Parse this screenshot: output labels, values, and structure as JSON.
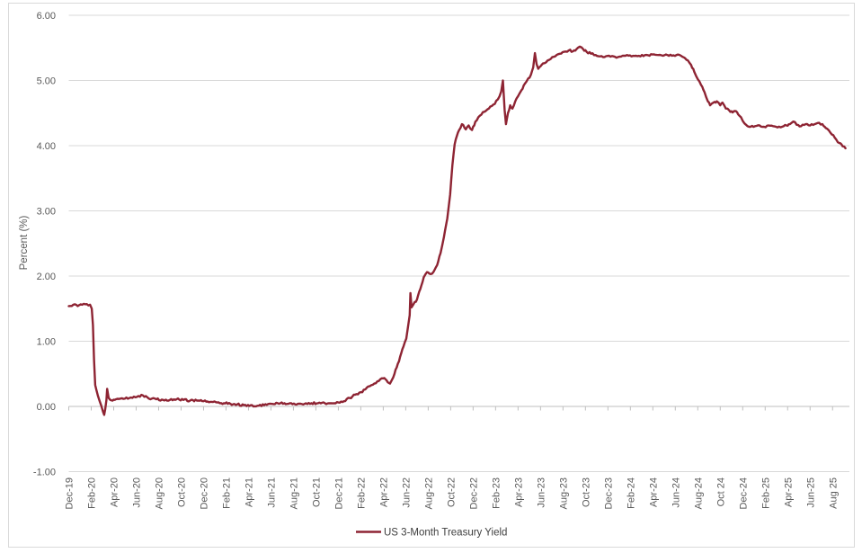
{
  "chart": {
    "y_axis_title": "Percent (%)",
    "legend_label": "US 3-Month Treasury Yield",
    "colors": {
      "line": "#8E2433",
      "gridline": "#D9D9D9",
      "axis_line": "#BFBFBF",
      "tick_label": "#595959",
      "legend_text": "#404040",
      "border": "#D9D9D9",
      "background": "#FFFFFF"
    }
  },
  "chart_data": {
    "type": "line",
    "title": "",
    "xlabel": "",
    "ylabel": "Percent (%)",
    "grid": "horizontal",
    "legend_position": "bottom-center",
    "ylim": [
      -1,
      6
    ],
    "y_ticks": [
      {
        "value": 6,
        "label": "6.00"
      },
      {
        "value": 5,
        "label": "5.00"
      },
      {
        "value": 4,
        "label": "4.00"
      },
      {
        "value": 3,
        "label": "3.00"
      },
      {
        "value": 2,
        "label": "2.00"
      },
      {
        "value": 1,
        "label": "1.00"
      },
      {
        "value": 0,
        "label": "0.00"
      },
      {
        "value": -1,
        "label": "-1.00"
      }
    ],
    "x_unit": "months_since_Dec_2019",
    "xlim": [
      0,
      69.5
    ],
    "x_tick_interval_months": 2,
    "x_tick_labels": [
      "Dec-19",
      "Feb-20",
      "Apr-20",
      "Jun-20",
      "Aug-20",
      "Oct-20",
      "Dec-20",
      "Feb-21",
      "Apr-21",
      "Jun-21",
      "Aug-21",
      "Oct-21",
      "Dec-21",
      "Feb-22",
      "Apr-22",
      "Jun-22",
      "Aug-22",
      "Oct-22",
      "Dec-22",
      "Feb-23",
      "Apr-23",
      "Jun-23",
      "Aug-23",
      "Oct-23",
      "Dec-23",
      "Feb-24",
      "Apr-24",
      "Jun-24",
      "Aug-24",
      "Oct 24",
      "Dec-24",
      "Feb-25",
      "Apr-25",
      "Jun-25",
      "Aug 25"
    ],
    "line_jitter": 0.016,
    "series": [
      {
        "name": "US 3-Month Treasury Yield",
        "color": "#8E2433",
        "points": [
          [
            0,
            1.54
          ],
          [
            0.4,
            1.56
          ],
          [
            0.8,
            1.54
          ],
          [
            1.2,
            1.56
          ],
          [
            1.6,
            1.57
          ],
          [
            1.9,
            1.56
          ],
          [
            2.05,
            1.5
          ],
          [
            2.15,
            1.25
          ],
          [
            2.25,
            0.72
          ],
          [
            2.35,
            0.33
          ],
          [
            2.45,
            0.26
          ],
          [
            2.6,
            0.16
          ],
          [
            2.75,
            0.08
          ],
          [
            2.9,
            0.01
          ],
          [
            3.05,
            -0.08
          ],
          [
            3.15,
            -0.13
          ],
          [
            3.25,
            -0.04
          ],
          [
            3.35,
            0.1
          ],
          [
            3.42,
            0.27
          ],
          [
            3.55,
            0.13
          ],
          [
            3.7,
            0.1
          ],
          [
            3.9,
            0.09
          ],
          [
            4.2,
            0.11
          ],
          [
            4.6,
            0.12
          ],
          [
            5.0,
            0.12
          ],
          [
            5.4,
            0.13
          ],
          [
            5.8,
            0.15
          ],
          [
            6.2,
            0.16
          ],
          [
            6.6,
            0.17
          ],
          [
            7.0,
            0.14
          ],
          [
            7.4,
            0.12
          ],
          [
            7.8,
            0.11
          ],
          [
            8.4,
            0.1
          ],
          [
            9.0,
            0.1
          ],
          [
            9.6,
            0.11
          ],
          [
            10.2,
            0.1
          ],
          [
            10.8,
            0.09
          ],
          [
            11.4,
            0.09
          ],
          [
            12.0,
            0.08
          ],
          [
            12.6,
            0.07
          ],
          [
            13.2,
            0.06
          ],
          [
            13.8,
            0.05
          ],
          [
            14.4,
            0.04
          ],
          [
            15.0,
            0.03
          ],
          [
            15.6,
            0.02
          ],
          [
            16.2,
            0.02
          ],
          [
            16.8,
            0.01
          ],
          [
            17.4,
            0.02
          ],
          [
            18.0,
            0.04
          ],
          [
            18.6,
            0.05
          ],
          [
            19.2,
            0.05
          ],
          [
            19.8,
            0.05
          ],
          [
            20.4,
            0.04
          ],
          [
            21.0,
            0.04
          ],
          [
            21.6,
            0.05
          ],
          [
            22.2,
            0.05
          ],
          [
            22.8,
            0.05
          ],
          [
            23.4,
            0.05
          ],
          [
            24.0,
            0.06
          ],
          [
            24.5,
            0.08
          ],
          [
            25.0,
            0.13
          ],
          [
            25.5,
            0.18
          ],
          [
            26.0,
            0.22
          ],
          [
            26.4,
            0.26
          ],
          [
            26.8,
            0.31
          ],
          [
            27.2,
            0.35
          ],
          [
            27.6,
            0.39
          ],
          [
            28.0,
            0.43
          ],
          [
            28.3,
            0.4
          ],
          [
            28.6,
            0.35
          ],
          [
            28.9,
            0.45
          ],
          [
            29.2,
            0.6
          ],
          [
            29.5,
            0.76
          ],
          [
            29.8,
            0.92
          ],
          [
            30.05,
            1.04
          ],
          [
            30.2,
            1.22
          ],
          [
            30.35,
            1.4
          ],
          [
            30.42,
            1.74
          ],
          [
            30.52,
            1.52
          ],
          [
            30.7,
            1.57
          ],
          [
            31.0,
            1.64
          ],
          [
            31.3,
            1.8
          ],
          [
            31.6,
            1.98
          ],
          [
            31.9,
            2.06
          ],
          [
            32.2,
            2.03
          ],
          [
            32.5,
            2.07
          ],
          [
            32.8,
            2.17
          ],
          [
            33.1,
            2.35
          ],
          [
            33.4,
            2.6
          ],
          [
            33.7,
            2.88
          ],
          [
            33.95,
            3.25
          ],
          [
            34.15,
            3.7
          ],
          [
            34.35,
            4.02
          ],
          [
            34.55,
            4.15
          ],
          [
            34.75,
            4.24
          ],
          [
            35.0,
            4.33
          ],
          [
            35.35,
            4.25
          ],
          [
            35.6,
            4.31
          ],
          [
            35.9,
            4.24
          ],
          [
            36.2,
            4.37
          ],
          [
            36.6,
            4.46
          ],
          [
            37.0,
            4.52
          ],
          [
            37.4,
            4.57
          ],
          [
            37.8,
            4.63
          ],
          [
            38.2,
            4.71
          ],
          [
            38.5,
            4.83
          ],
          [
            38.65,
            5.0
          ],
          [
            38.8,
            4.55
          ],
          [
            38.92,
            4.33
          ],
          [
            39.1,
            4.5
          ],
          [
            39.3,
            4.62
          ],
          [
            39.5,
            4.57
          ],
          [
            39.75,
            4.68
          ],
          [
            40.0,
            4.76
          ],
          [
            40.3,
            4.85
          ],
          [
            40.6,
            4.95
          ],
          [
            40.9,
            5.03
          ],
          [
            41.15,
            5.09
          ],
          [
            41.35,
            5.2
          ],
          [
            41.5,
            5.42
          ],
          [
            41.65,
            5.25
          ],
          [
            41.8,
            5.18
          ],
          [
            42.1,
            5.24
          ],
          [
            42.5,
            5.28
          ],
          [
            42.9,
            5.33
          ],
          [
            43.3,
            5.37
          ],
          [
            43.7,
            5.41
          ],
          [
            44.1,
            5.44
          ],
          [
            44.5,
            5.46
          ],
          [
            44.9,
            5.45
          ],
          [
            45.2,
            5.48
          ],
          [
            45.5,
            5.52
          ],
          [
            45.8,
            5.48
          ],
          [
            46.1,
            5.44
          ],
          [
            46.5,
            5.41
          ],
          [
            46.9,
            5.39
          ],
          [
            47.3,
            5.37
          ],
          [
            47.7,
            5.36
          ],
          [
            48.1,
            5.38
          ],
          [
            48.5,
            5.37
          ],
          [
            48.9,
            5.36
          ],
          [
            49.3,
            5.38
          ],
          [
            49.7,
            5.39
          ],
          [
            50.1,
            5.37
          ],
          [
            50.5,
            5.38
          ],
          [
            50.9,
            5.37
          ],
          [
            51.3,
            5.39
          ],
          [
            51.7,
            5.38
          ],
          [
            52.1,
            5.4
          ],
          [
            52.5,
            5.39
          ],
          [
            52.9,
            5.38
          ],
          [
            53.3,
            5.39
          ],
          [
            53.7,
            5.38
          ],
          [
            54.1,
            5.39
          ],
          [
            54.5,
            5.38
          ],
          [
            54.8,
            5.35
          ],
          [
            55.1,
            5.31
          ],
          [
            55.4,
            5.24
          ],
          [
            55.7,
            5.13
          ],
          [
            56.0,
            5.02
          ],
          [
            56.3,
            4.93
          ],
          [
            56.6,
            4.82
          ],
          [
            56.9,
            4.68
          ],
          [
            57.1,
            4.62
          ],
          [
            57.4,
            4.66
          ],
          [
            57.7,
            4.68
          ],
          [
            58.0,
            4.62
          ],
          [
            58.2,
            4.66
          ],
          [
            58.5,
            4.57
          ],
          [
            58.8,
            4.54
          ],
          [
            59.1,
            4.51
          ],
          [
            59.4,
            4.53
          ],
          [
            59.7,
            4.46
          ],
          [
            60.0,
            4.38
          ],
          [
            60.3,
            4.32
          ],
          [
            60.7,
            4.29
          ],
          [
            61.1,
            4.3
          ],
          [
            61.5,
            4.31
          ],
          [
            61.9,
            4.29
          ],
          [
            62.3,
            4.31
          ],
          [
            62.7,
            4.3
          ],
          [
            63.1,
            4.28
          ],
          [
            63.5,
            4.29
          ],
          [
            63.9,
            4.31
          ],
          [
            64.2,
            4.33
          ],
          [
            64.5,
            4.37
          ],
          [
            64.8,
            4.32
          ],
          [
            65.2,
            4.3
          ],
          [
            65.6,
            4.33
          ],
          [
            66.0,
            4.31
          ],
          [
            66.4,
            4.33
          ],
          [
            66.8,
            4.35
          ],
          [
            67.1,
            4.33
          ],
          [
            67.4,
            4.27
          ],
          [
            67.8,
            4.2
          ],
          [
            68.2,
            4.12
          ],
          [
            68.6,
            4.04
          ],
          [
            68.9,
            3.99
          ],
          [
            69.15,
            3.96
          ]
        ]
      }
    ]
  }
}
